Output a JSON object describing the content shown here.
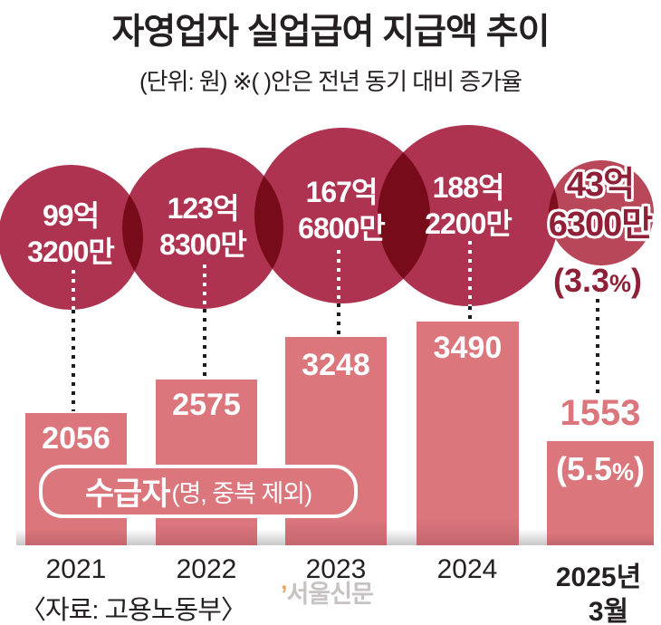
{
  "title": "자영업자 실업급여 지급액 추이",
  "subtitle": "(단위: 원) ※( )안은 전년 동기 대비 증가율",
  "source": "〈자료: 고용노동부〉",
  "watermark": {
    "tick": "’",
    "text": "서울신문"
  },
  "badge": {
    "main": "수급자",
    "sub": "(명, 중복 제외)"
  },
  "circles": [
    {
      "line1": "99억",
      "line2": "3200만"
    },
    {
      "line1": "123억",
      "line2": "8300만"
    },
    {
      "line1": "167억",
      "line2": "6800만"
    },
    {
      "line1": "188억",
      "line2": "2200만"
    },
    {
      "line1": "43억",
      "line2": "6300만",
      "pct_value": "(3.3",
      "pct_unit": "%",
      "pct_close": ")"
    }
  ],
  "bars": [
    {
      "value": "2056"
    },
    {
      "value": "2575"
    },
    {
      "value": "3248"
    },
    {
      "value": "3490"
    },
    {
      "value": "1553",
      "pct_value": "(5.5",
      "pct_unit": "%",
      "pct_close": ")"
    }
  ],
  "axis": {
    "y1": "2021",
    "y2": "2022",
    "y3": "2023",
    "y4": "2024",
    "y5a": "2025년",
    "y5b": "3월"
  },
  "colors": {
    "bubble": "#ae3350",
    "bubble_small": "#b8475a",
    "bubble_overlap": "#750a19",
    "bar": "#da767c",
    "dark_text": "#8e2138",
    "ink": "#241f21",
    "watermark_gray": "#c7c3c2",
    "watermark_orange": "#eba55f"
  },
  "chart_data": {
    "type": "bar",
    "title": "자영업자 실업급여 지급액 추이",
    "unit": "원",
    "note": "※( )안은 전년 동기 대비 증가율",
    "categories": [
      "2021",
      "2022",
      "2023",
      "2024",
      "2025년 3월"
    ],
    "series": [
      {
        "name": "지급액",
        "type": "bubble",
        "labels": [
          "99억 3200만",
          "123억 8300만",
          "167억 6800만",
          "188억 2200만",
          "43억 6300만"
        ],
        "values_won": [
          9932000000,
          12383000000,
          16768000000,
          18822000000,
          4363000000
        ],
        "yoy_growth_pct": [
          null,
          null,
          null,
          null,
          3.3
        ]
      },
      {
        "name": "수급자(명, 중복 제외)",
        "type": "bar",
        "values": [
          2056,
          2575,
          3248,
          3490,
          1553
        ],
        "yoy_growth_pct": [
          null,
          null,
          null,
          null,
          5.5
        ]
      }
    ],
    "legend_position": "in-chart",
    "grid": false,
    "source": "자료: 고용노동부"
  }
}
